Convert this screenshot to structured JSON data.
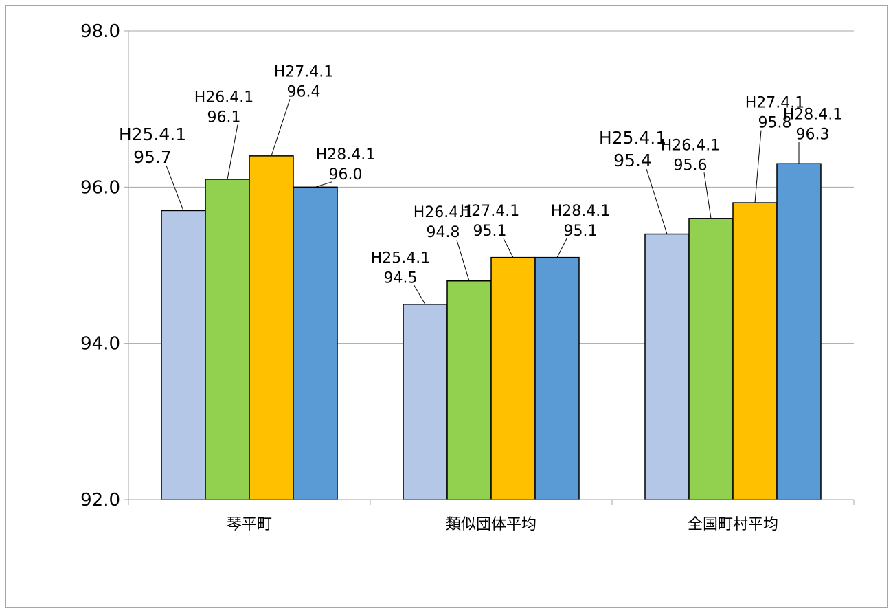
{
  "chart_data": {
    "type": "bar",
    "categories": [
      "琴平町",
      "類似団体平均",
      "全国町村平均"
    ],
    "series": [
      {
        "name": "H25.4.1",
        "values": [
          95.7,
          94.5,
          95.4
        ],
        "color": "#b4c7e7"
      },
      {
        "name": "H26.4.1",
        "values": [
          96.1,
          94.8,
          95.6
        ],
        "color": "#92d050"
      },
      {
        "name": "H27.4.1",
        "values": [
          96.4,
          95.1,
          95.8
        ],
        "color": "#ffc000"
      },
      {
        "name": "H28.4.1",
        "values": [
          96.0,
          95.1,
          96.3
        ],
        "color": "#5b9bd5"
      }
    ],
    "yticks": [
      "92.0",
      "94.0",
      "96.0",
      "98.0"
    ],
    "ylim": [
      92,
      98
    ],
    "grid": true,
    "legend": "none",
    "data_labels": true,
    "title": "",
    "xlabel": "",
    "ylabel": ""
  }
}
